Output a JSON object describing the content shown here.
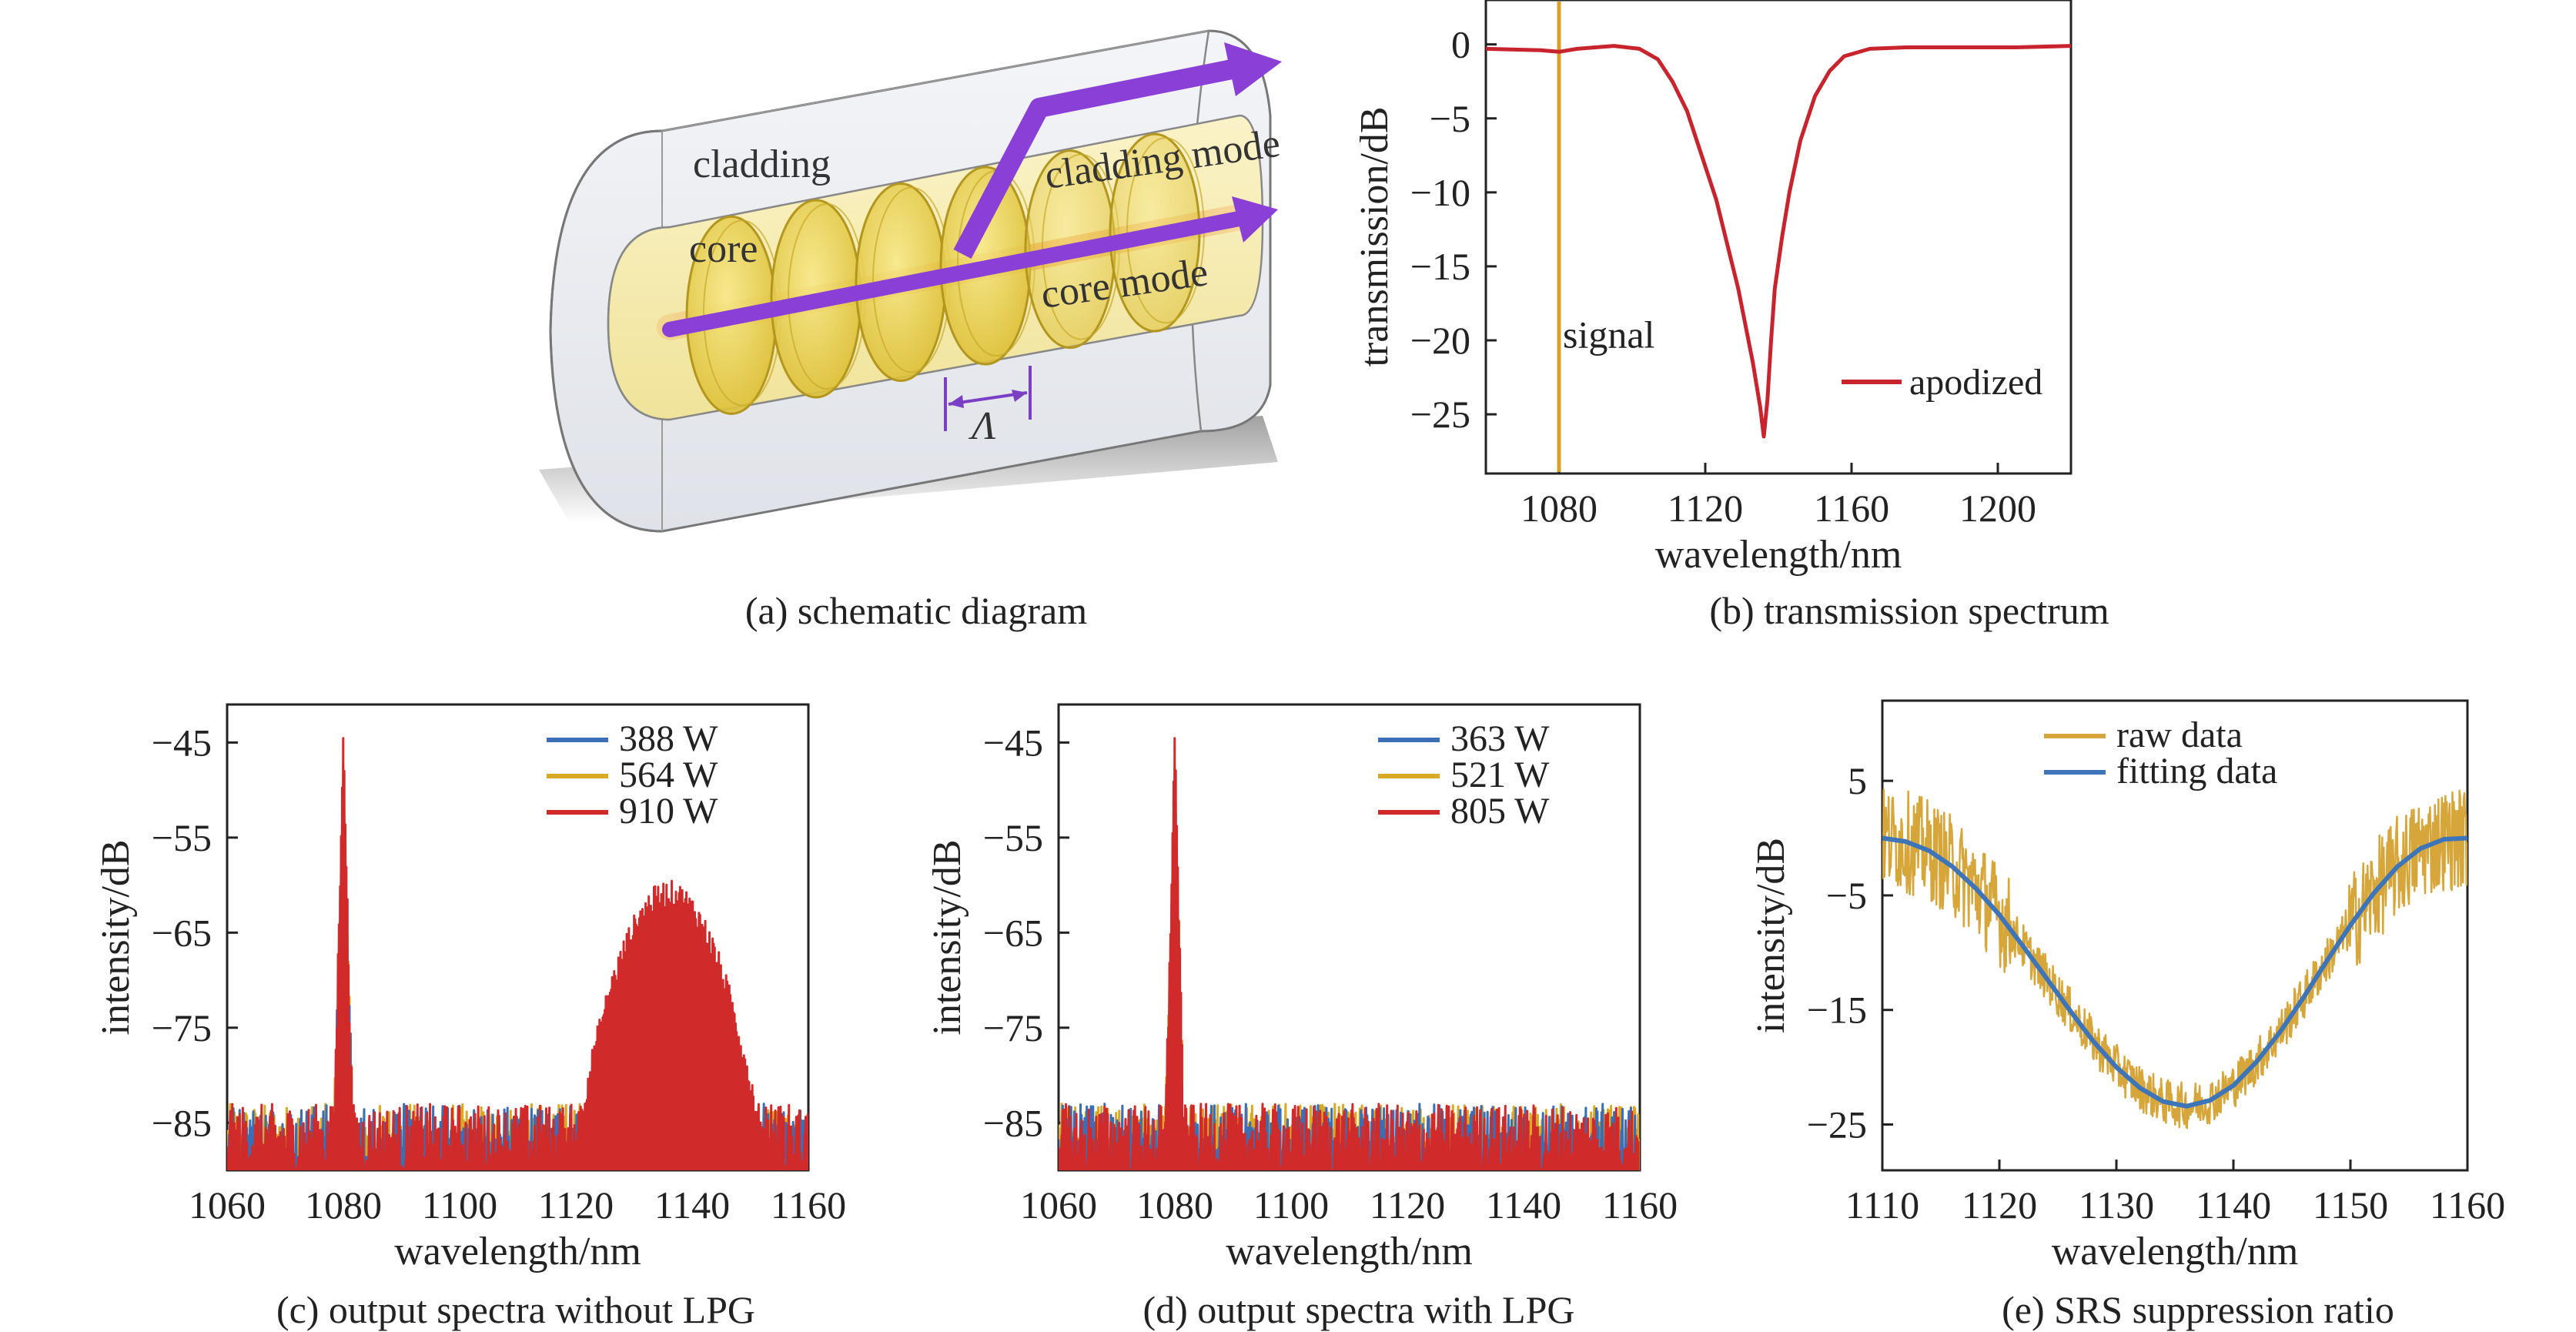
{
  "colors": {
    "blue": "#3a6fb5",
    "yellow": "#d9a824",
    "red": "#d12a2a",
    "apodized": "#c8242e",
    "signal_line": "#d9a12a",
    "raw": "#d7a63a",
    "fit": "#3e74b8"
  },
  "diagram": {
    "labels": {
      "cladding": "cladding",
      "core": "core",
      "cladding_mode": "cladding mode",
      "core_mode": "core mode",
      "period": "Λ"
    },
    "caption": "(a) schematic diagram",
    "colors": {
      "disk": "#ecd34a",
      "arrow": "#8a3fd6",
      "glow": "#f08a2a",
      "shell": "#cfd3da"
    }
  },
  "chart_data": [
    {
      "id": "b",
      "type": "line",
      "caption": "(b) transmission spectrum",
      "xlabel": "wavelength/nm",
      "ylabel": "transmission/dB",
      "xlim": [
        1060,
        1220
      ],
      "ylim": [
        -29,
        3
      ],
      "xticks": [
        1080,
        1120,
        1160,
        1200
      ],
      "yticks": [
        0,
        -5,
        -10,
        -15,
        -20,
        -25
      ],
      "legend": {
        "position": "lower-right"
      },
      "annotations": [
        {
          "text": "signal",
          "x": 1080
        }
      ],
      "vline": {
        "x": 1080,
        "color": "#d9a12a"
      },
      "series": [
        {
          "name": "apodized",
          "color": "#c8242e",
          "dip_center": 1136,
          "dip_depth": -26.5,
          "points": [
            [
              1060,
              -0.3
            ],
            [
              1075,
              -0.4
            ],
            [
              1080,
              -0.5
            ],
            [
              1085,
              -0.3
            ],
            [
              1095,
              -0.1
            ],
            [
              1102,
              -0.3
            ],
            [
              1107,
              -1.0
            ],
            [
              1111,
              -2.5
            ],
            [
              1115,
              -4.5
            ],
            [
              1119,
              -7.5
            ],
            [
              1123,
              -10.5
            ],
            [
              1126,
              -13.5
            ],
            [
              1129,
              -16.5
            ],
            [
              1131,
              -19
            ],
            [
              1133,
              -21.5
            ],
            [
              1135,
              -24.5
            ],
            [
              1136,
              -26.5
            ],
            [
              1137,
              -24
            ],
            [
              1138,
              -20
            ],
            [
              1139,
              -16.5
            ],
            [
              1141,
              -13
            ],
            [
              1143,
              -10
            ],
            [
              1146,
              -6.5
            ],
            [
              1150,
              -3.5
            ],
            [
              1154,
              -1.8
            ],
            [
              1158,
              -0.8
            ],
            [
              1165,
              -0.3
            ],
            [
              1175,
              -0.2
            ],
            [
              1190,
              -0.2
            ],
            [
              1205,
              -0.2
            ],
            [
              1220,
              -0.1
            ]
          ]
        }
      ]
    },
    {
      "id": "c",
      "type": "line",
      "caption": "(c) output spectra without LPG",
      "xlabel": "wavelength/nm",
      "ylabel": "intensity/dB",
      "xlim": [
        1060,
        1160
      ],
      "ylim": [
        -90,
        -41
      ],
      "xticks": [
        1060,
        1080,
        1100,
        1120,
        1140,
        1160
      ],
      "yticks": [
        -45,
        -55,
        -65,
        -75,
        -85
      ],
      "legend": {
        "position": "top-right"
      },
      "peak_x": 1080,
      "series": [
        {
          "name": "388 W",
          "color": "#3a6fb5",
          "peak": -49,
          "hump": {
            "center": 1136,
            "top": -74,
            "halfwidth": 9
          }
        },
        {
          "name": "564 W",
          "color": "#d9a824",
          "peak": -47,
          "hump": {
            "center": 1136,
            "top": -67.5,
            "halfwidth": 13
          }
        },
        {
          "name": "910 W",
          "color": "#d12a2a",
          "peak": -44,
          "hump": {
            "center": 1136,
            "top": -61,
            "halfwidth": 16
          }
        }
      ]
    },
    {
      "id": "d",
      "type": "line",
      "caption": "(d) output spectra with LPG",
      "xlabel": "wavelength/nm",
      "ylabel": "intensity/dB",
      "xlim": [
        1060,
        1160
      ],
      "ylim": [
        -90,
        -41
      ],
      "xticks": [
        1060,
        1080,
        1100,
        1120,
        1140,
        1160
      ],
      "yticks": [
        -45,
        -55,
        -65,
        -75,
        -85
      ],
      "legend": {
        "position": "top-right"
      },
      "peak_x": 1080,
      "series": [
        {
          "name": "363 W",
          "color": "#3a6fb5",
          "peak": -49,
          "hump": null
        },
        {
          "name": "521 W",
          "color": "#d9a824",
          "peak": -47,
          "hump": null
        },
        {
          "name": "805 W",
          "color": "#d12a2a",
          "peak": -44,
          "hump": null
        }
      ]
    },
    {
      "id": "e",
      "type": "line",
      "caption": "(e) SRS suppression ratio",
      "xlabel": "wavelength/nm",
      "ylabel": "intensity/dB",
      "xlim": [
        1110,
        1160
      ],
      "ylim": [
        -29,
        12
      ],
      "xticks": [
        1110,
        1120,
        1130,
        1140,
        1150,
        1160
      ],
      "yticks": [
        5,
        -5,
        -15,
        -25
      ],
      "legend": {
        "position": "top-center"
      },
      "series": [
        {
          "name": "raw data",
          "color": "#d7a63a",
          "role": "noisy"
        },
        {
          "name": "fitting data",
          "color": "#3e74b8",
          "points": [
            [
              1110,
              0
            ],
            [
              1112,
              -0.3
            ],
            [
              1114,
              -1.1
            ],
            [
              1116,
              -2.5
            ],
            [
              1118,
              -4.4
            ],
            [
              1120,
              -6.7
            ],
            [
              1122,
              -9.4
            ],
            [
              1124,
              -12.2
            ],
            [
              1126,
              -15
            ],
            [
              1128,
              -17.7
            ],
            [
              1130,
              -20
            ],
            [
              1132,
              -21.8
            ],
            [
              1134,
              -23
            ],
            [
              1136,
              -23.4
            ],
            [
              1138,
              -22.9
            ],
            [
              1140,
              -21.6
            ],
            [
              1142,
              -19.5
            ],
            [
              1144,
              -16.9
            ],
            [
              1146,
              -13.9
            ],
            [
              1148,
              -10.7
            ],
            [
              1150,
              -7.6
            ],
            [
              1152,
              -4.8
            ],
            [
              1154,
              -2.5
            ],
            [
              1156,
              -0.9
            ],
            [
              1158,
              -0.1
            ],
            [
              1160,
              0
            ]
          ]
        }
      ]
    }
  ]
}
